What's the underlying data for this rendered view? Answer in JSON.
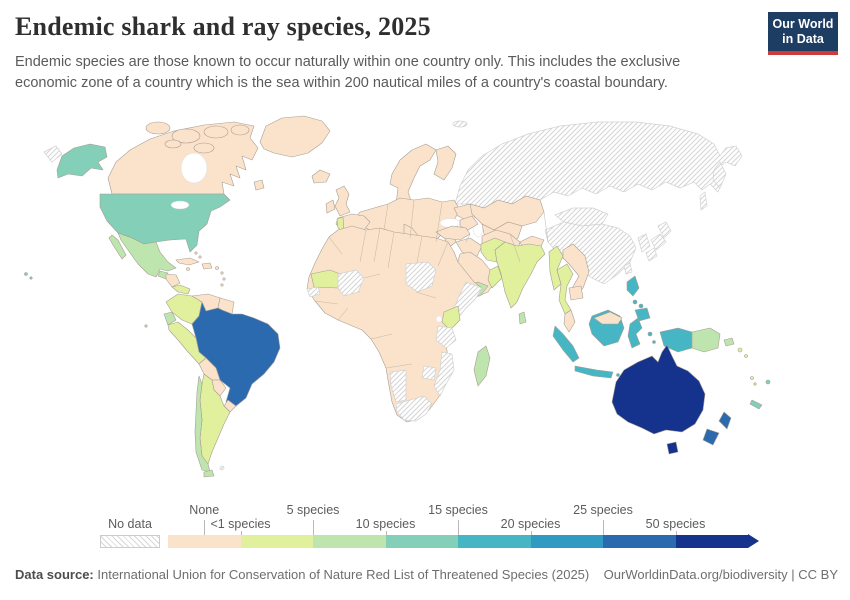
{
  "header": {
    "title": "Endemic shark and ray species, 2025",
    "subtitle_line1": "Endemic species are those known to occur naturally within one country only. This includes the exclusive",
    "subtitle_line2": "economic zone of a country which is the sea within 200 nautical miles of a country's coastal boundary."
  },
  "logo": {
    "line1": "Our World",
    "line2": "in Data",
    "bg_color": "#1d3d63",
    "accent_color": "#cf3a3a"
  },
  "footer": {
    "source_label": "Data source:",
    "source_text": " International Union for Conservation of Nature Red List of Threatened Species (2025)",
    "credit": "OurWorldinData.org/biodiversity | CC BY"
  },
  "chart_data": {
    "type": "choropleth_map",
    "title": "Endemic shark and ray species, 2025",
    "year": "2025",
    "unit": "species",
    "projection": "world",
    "legend": {
      "no_data_label": "No data",
      "no_data_pattern": "diagonal-hatch #d7d7d7 on #ffffff",
      "open_ended_upper": true,
      "bins": [
        {
          "label": "None",
          "color": "#fbe3cb",
          "row": "top"
        },
        {
          "label": "<1 species",
          "color": "#e0f09d",
          "row": "bottom"
        },
        {
          "label": "5 species",
          "color": "#bfe5ae",
          "row": "top"
        },
        {
          "label": "10 species",
          "color": "#83cfb8",
          "row": "bottom"
        },
        {
          "label": "15 species",
          "color": "#47b6c4",
          "row": "top"
        },
        {
          "label": "20 species",
          "color": "#2f9bc3",
          "row": "bottom"
        },
        {
          "label": "25 species",
          "color": "#2c6ab0",
          "row": "top"
        },
        {
          "label": "50 species",
          "color": "#15338c",
          "row": "bottom"
        }
      ]
    },
    "country_bins_note": "0 = no data (hatched); 1-8 = legend bins left to right, read from map colors",
    "country_bins": {
      "russia": 0,
      "svalbard": 0,
      "mongolia": 0,
      "china": 0,
      "korea": 0,
      "japan": 0,
      "taiwan": 0,
      "mali": 0,
      "senegal": 0,
      "sudan": 0,
      "somalia": 0,
      "tanzania": 0,
      "mozambique": 0,
      "zimbabwe": 0,
      "namibia": 0,
      "south-africa": 0,
      "falkland-islands": 0,
      "canada": 1,
      "greenland": 1,
      "europe-other": 1,
      "iceland": 1,
      "united-kingdom": 1,
      "ireland": 1,
      "scandinavia": 1,
      "finland": 1,
      "iberia": 1,
      "italy": 1,
      "greece": 1,
      "ukraine": 1,
      "kazakhstan": 1,
      "central-asia": 1,
      "caucasus": 1,
      "turkey": 1,
      "syria-iraq": 1,
      "iran": 1,
      "afghanistan": 1,
      "saudi-arabia": 1,
      "africa-other": 1,
      "honduras-nicaragua": 1,
      "cuba": 1,
      "hispaniola": 1,
      "caribbean-other": 1,
      "venezuela": 1,
      "guianas": 1,
      "bolivia": 1,
      "paraguay": 1,
      "uruguay": 1,
      "vietnam-laos": 1,
      "cambodia": 1,
      "malaysia": 1,
      "timor": 1,
      "portugal": 2,
      "mauritania": 2,
      "kenya": 2,
      "oman": 2,
      "pakistan": 2,
      "india": 2,
      "myanmar": 2,
      "thailand": 2,
      "colombia": 2,
      "peru": 2,
      "argentina": 2,
      "costa-rica-panama": 2,
      "solomon-islands": 2,
      "vanuatu": 2,
      "mexico": 3,
      "guatemala": 3,
      "ecuador": 3,
      "chile": 3,
      "yemen": 3,
      "madagascar": 3,
      "sri-lanka": 3,
      "papua-new-guinea": 3,
      "galapagos": 3,
      "united-states": 4,
      "fiji": 4,
      "new-caledonia": 4,
      "philippines": 5,
      "indonesia": 5,
      "brazil": 7,
      "new-zealand": 7,
      "australia": 8
    }
  }
}
